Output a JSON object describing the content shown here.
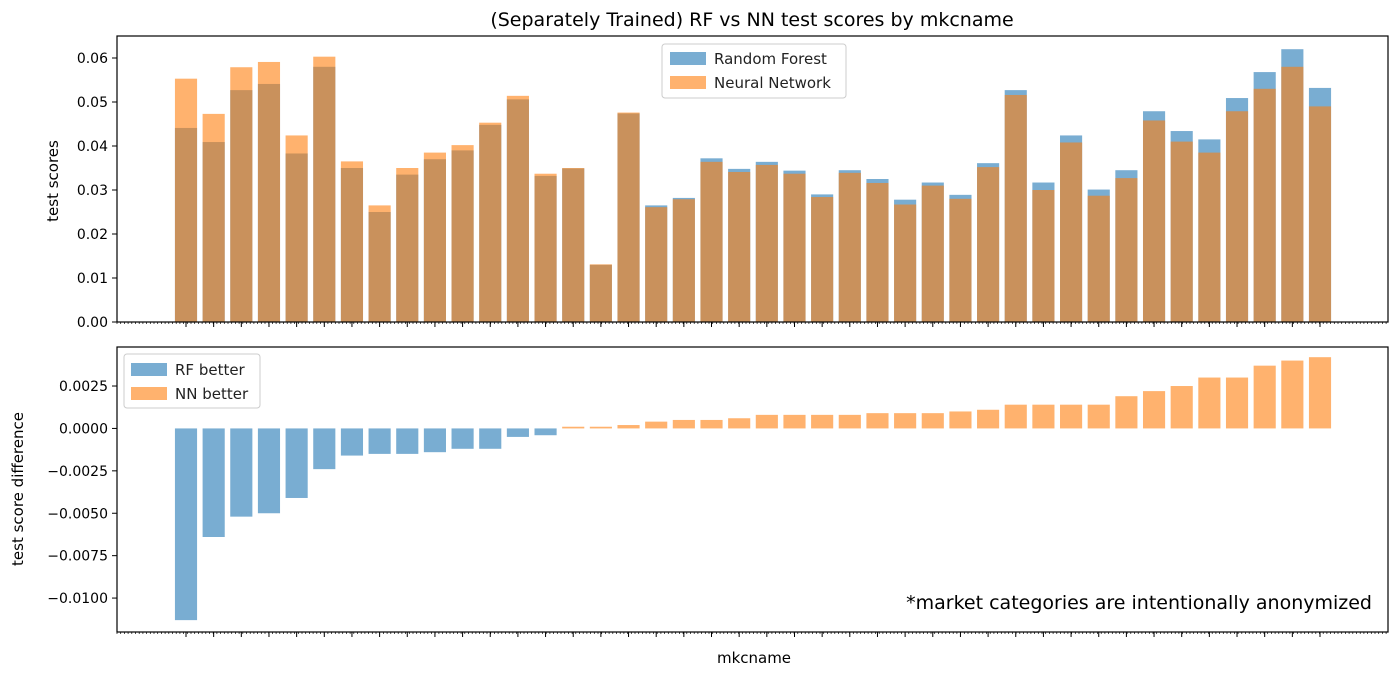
{
  "chart_data": [
    {
      "type": "bar",
      "title": "(Separately Trained) RF vs NN test scores by mkcname",
      "ylabel": "test scores",
      "xlabel": "",
      "ylim": [
        0,
        0.065
      ],
      "yticks": [
        0.0,
        0.01,
        0.02,
        0.03,
        0.04,
        0.05,
        0.06
      ],
      "ytick_labels": [
        "0.00",
        "0.01",
        "0.02",
        "0.03",
        "0.04",
        "0.05",
        "0.06"
      ],
      "legend_position": "top-center",
      "overlay": true,
      "series": [
        {
          "name": "Random Forest",
          "color": "#1f77b4",
          "values": [
            0.0441,
            0.0409,
            0.0527,
            0.0541,
            0.0383,
            0.058,
            0.035,
            0.025,
            0.0335,
            0.037,
            0.039,
            0.0448,
            0.0506,
            0.0332,
            0.0349,
            0.013,
            0.0474,
            0.0265,
            0.0282,
            0.0372,
            0.0348,
            0.0364,
            0.0344,
            0.029,
            0.0345,
            0.0325,
            0.0278,
            0.0317,
            0.0289,
            0.0361,
            0.0527,
            0.0317,
            0.0424,
            0.0301,
            0.0345,
            0.0479,
            0.0434,
            0.0415,
            0.0509,
            0.0568,
            0.062,
            0.0532
          ]
        },
        {
          "name": "Neural Network",
          "color": "#ff7f0e",
          "values": [
            0.0553,
            0.0473,
            0.0579,
            0.0591,
            0.0424,
            0.0603,
            0.0365,
            0.0265,
            0.035,
            0.0385,
            0.0402,
            0.0453,
            0.0514,
            0.0337,
            0.035,
            0.0131,
            0.0476,
            0.0261,
            0.0279,
            0.0364,
            0.0341,
            0.0357,
            0.0337,
            0.0284,
            0.0339,
            0.0316,
            0.0267,
            0.031,
            0.028,
            0.0352,
            0.0516,
            0.03,
            0.0408,
            0.0287,
            0.0327,
            0.0458,
            0.041,
            0.0385,
            0.0479,
            0.053,
            0.058,
            0.049
          ]
        }
      ]
    },
    {
      "type": "bar",
      "xlabel": "mkcname",
      "ylabel": "test score difference",
      "ylim": [
        -0.012,
        0.0048
      ],
      "yticks": [
        -0.01,
        -0.0075,
        -0.005,
        -0.0025,
        0.0,
        0.0025
      ],
      "ytick_labels": [
        "−0.0100",
        "−0.0075",
        "−0.0050",
        "−0.0025",
        "0.0000",
        "0.0025"
      ],
      "legend_position": "top-left",
      "legend": [
        {
          "name": "RF better",
          "color": "#1f77b4"
        },
        {
          "name": "NN better",
          "color": "#ff7f0e"
        }
      ],
      "annotation": "*market categories are intentionally anonymized",
      "values": [
        -0.0113,
        -0.0064,
        -0.0052,
        -0.005,
        -0.0041,
        -0.0024,
        -0.0016,
        -0.0015,
        -0.0015,
        -0.0014,
        -0.0012,
        -0.0012,
        -0.0005,
        -0.0004,
        0.0001,
        0.0001,
        0.0002,
        0.0004,
        0.0005,
        0.0005,
        0.0006,
        0.0008,
        0.0008,
        0.0008,
        0.0008,
        0.0009,
        0.0009,
        0.0009,
        0.001,
        0.0011,
        0.0014,
        0.0014,
        0.0014,
        0.0014,
        0.0019,
        0.0022,
        0.0025,
        0.003,
        0.003,
        0.0037,
        0.004,
        0.0042
      ]
    }
  ]
}
